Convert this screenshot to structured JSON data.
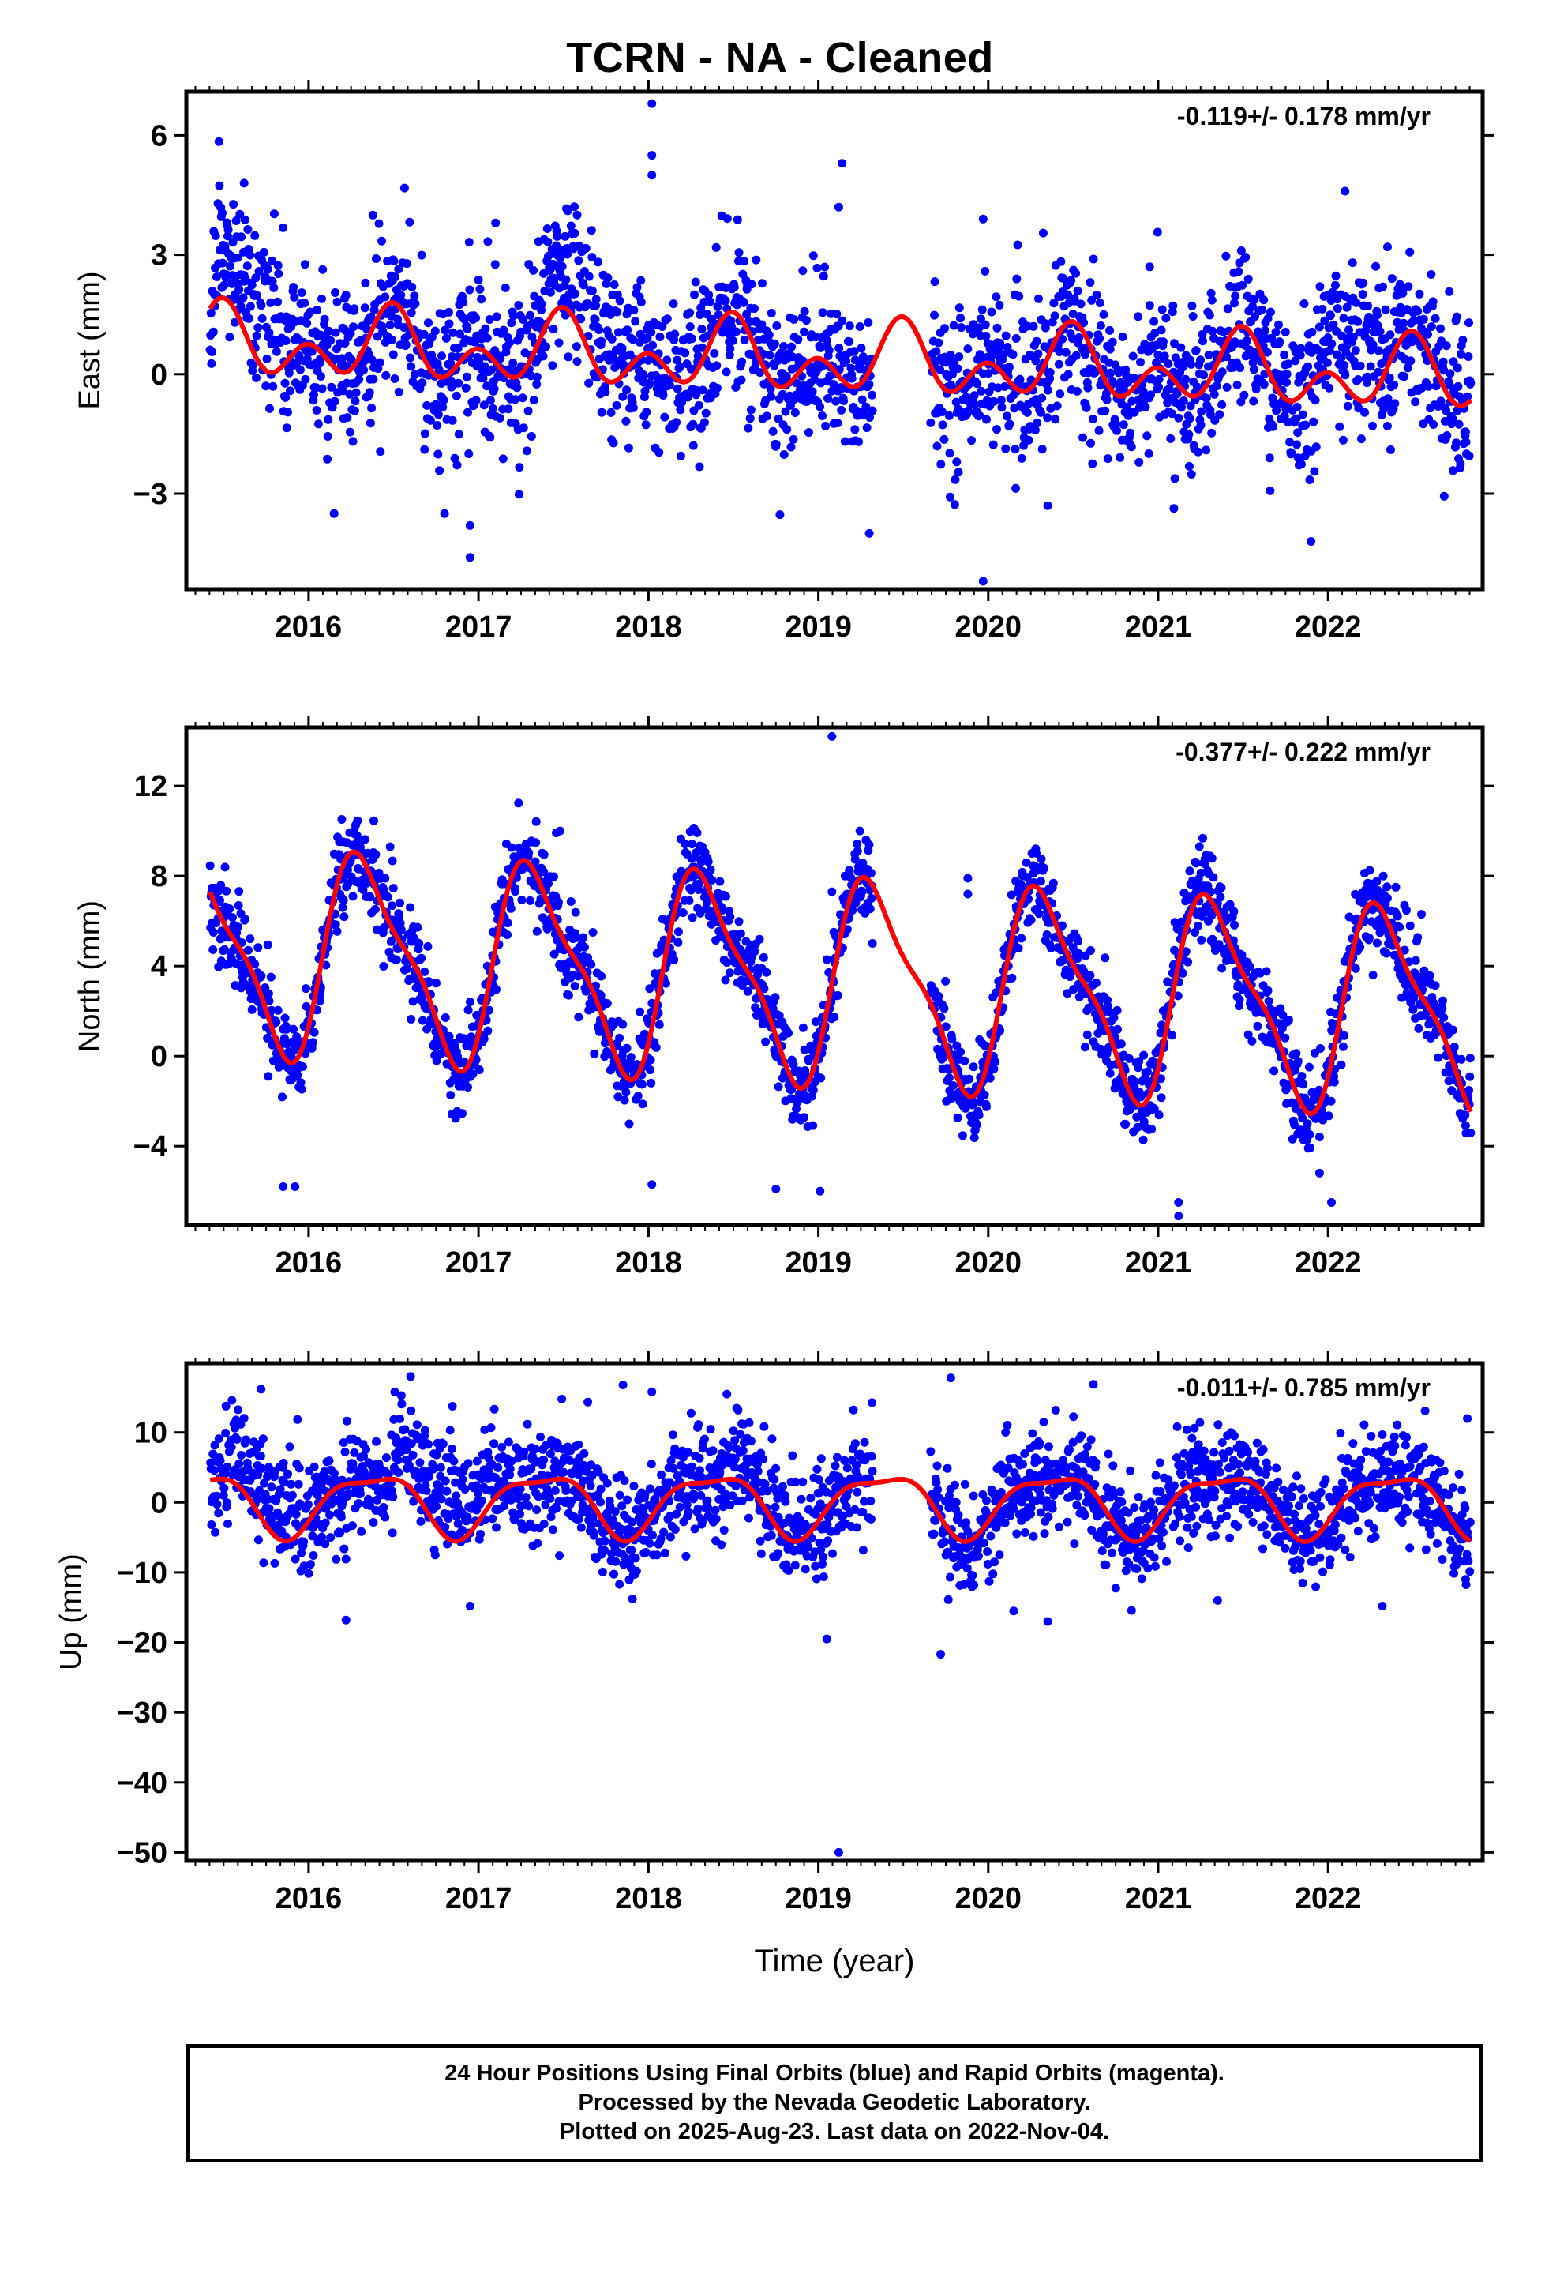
{
  "title": "TCRN  - NA - Cleaned",
  "footer": {
    "line1": "24 Hour Positions Using Final Orbits (blue) and Rapid Orbits (magenta).",
    "line2": "Processed by the Nevada Geodetic Laboratory.",
    "line3": "Plotted on 2025-Aug-23. Last data on 2022-Nov-04."
  },
  "colors": {
    "points": "#0000ff",
    "fit": "#ff0000",
    "axes": "#000000"
  },
  "chart_data": [
    {
      "type": "scatter",
      "component": "east",
      "ylabel": "East (mm)",
      "xlabel": "",
      "rate_label": "-0.119+/- 0.178 mm/yr",
      "xlim": [
        2015.28,
        2022.91
      ],
      "ylim": [
        -5.4,
        7.1
      ],
      "yticks": [
        -3,
        0,
        3,
        6
      ],
      "xticks": [
        2016,
        2017,
        2018,
        2019,
        2020,
        2021,
        2022
      ],
      "data_start": 2015.42,
      "data_end": 2022.84,
      "gap": [
        2019.32,
        2019.66
      ],
      "model": {
        "offset": 0.35,
        "trend": -0.119,
        "annual_cos": -0.55,
        "annual_sin": 0.05,
        "semiannual_cos": 0.6,
        "semiannual_sin": -0.05
      },
      "scatter_sigma": 0.95,
      "seasonal_bias": [
        {
          "x0": 2015.45,
          "x1": 2015.85,
          "dy": 1.2
        },
        {
          "x0": 2017.35,
          "x1": 2017.85,
          "dy": 0.7
        },
        {
          "x0": 2021.95,
          "x1": 2022.3,
          "dy": 1.2
        }
      ],
      "outliers": [
        {
          "x": 2018.02,
          "y": 6.8
        },
        {
          "x": 2018.02,
          "y": 5.5
        },
        {
          "x": 2018.02,
          "y": 5.0
        },
        {
          "x": 2019.14,
          "y": 5.3
        },
        {
          "x": 2019.12,
          "y": 4.2
        },
        {
          "x": 2022.1,
          "y": 4.6
        },
        {
          "x": 2015.62,
          "y": 4.8
        },
        {
          "x": 2019.97,
          "y": 3.9
        },
        {
          "x": 2019.97,
          "y": -5.2
        },
        {
          "x": 2016.95,
          "y": -4.6
        },
        {
          "x": 2016.95,
          "y": -3.8
        },
        {
          "x": 2016.8,
          "y": -3.5
        },
        {
          "x": 2019.3,
          "y": -4.0
        },
        {
          "x": 2021.9,
          "y": -4.2
        },
        {
          "x": 2016.15,
          "y": -3.5
        },
        {
          "x": 2017.1,
          "y": 3.8
        },
        {
          "x": 2017.58,
          "y": 4.0
        },
        {
          "x": 2020.35,
          "y": -3.3
        },
        {
          "x": 2022.35,
          "y": 3.2
        },
        {
          "x": 2020.95,
          "y": 2.7
        }
      ]
    },
    {
      "type": "scatter",
      "component": "north",
      "ylabel": "North (mm)",
      "xlabel": "",
      "rate_label": "-0.377+/- 0.222 mm/yr",
      "xlim": [
        2015.28,
        2022.91
      ],
      "ylim": [
        -7.5,
        14.6
      ],
      "yticks": [
        -4,
        0,
        4,
        8,
        12
      ],
      "xticks": [
        2016,
        2017,
        2018,
        2019,
        2020,
        2021,
        2022
      ],
      "data_start": 2015.42,
      "data_end": 2022.84,
      "gap": [
        2019.32,
        2019.66
      ],
      "model": {
        "offset": 3.4,
        "trend": -0.377,
        "annual_cos": -2.2,
        "annual_sin": 3.6,
        "semiannual_cos": -1.0,
        "semiannual_sin": 0.7
      },
      "scatter_sigma": 0.95,
      "seasonal_bias": [],
      "outliers": [
        {
          "x": 2019.08,
          "y": 14.2
        },
        {
          "x": 2017.48,
          "y": 10.0
        },
        {
          "x": 2016.48,
          "y": 9.3
        },
        {
          "x": 2019.88,
          "y": 7.9
        },
        {
          "x": 2019.88,
          "y": 7.2
        },
        {
          "x": 2019.08,
          "y": 7.3
        },
        {
          "x": 2021.12,
          "y": -7.1
        },
        {
          "x": 2021.12,
          "y": -6.5
        },
        {
          "x": 2015.85,
          "y": -5.8
        },
        {
          "x": 2015.92,
          "y": -5.8
        },
        {
          "x": 2018.02,
          "y": -5.7
        },
        {
          "x": 2022.02,
          "y": -6.5
        },
        {
          "x": 2018.75,
          "y": -5.9
        },
        {
          "x": 2022.45,
          "y": 6.7
        },
        {
          "x": 2022.55,
          "y": 6.3
        },
        {
          "x": 2019.01,
          "y": -6.0
        },
        {
          "x": 2021.95,
          "y": -5.2
        }
      ]
    },
    {
      "type": "scatter",
      "component": "up",
      "ylabel": "Up (mm)",
      "xlabel": "Time (year)",
      "rate_label": "-0.011+/- 0.785 mm/yr",
      "xlim": [
        2015.28,
        2022.91
      ],
      "ylim": [
        -51.2,
        19.9
      ],
      "yticks": [
        -50,
        -40,
        -30,
        -20,
        -10,
        0,
        10
      ],
      "xticks": [
        2016,
        2017,
        2018,
        2019,
        2020,
        2021,
        2022
      ],
      "data_start": 2015.42,
      "data_end": 2022.84,
      "gap": [
        2019.32,
        2019.66
      ],
      "model": {
        "offset": 0.0,
        "trend": -0.011,
        "annual_cos": -3.0,
        "annual_sin": 3.0,
        "semiannual_cos": 0.3,
        "semiannual_sin": 1.3
      },
      "scatter_sigma": 3.6,
      "seasonal_bias": [
        {
          "x0": 2015.5,
          "x1": 2015.95,
          "dy": 4.0
        },
        {
          "x0": 2016.5,
          "x1": 2017.1,
          "dy": 5.5
        },
        {
          "x0": 2018.45,
          "x1": 2018.9,
          "dy": 2.5
        }
      ],
      "outliers": [
        {
          "x": 2019.12,
          "y": -50.0
        },
        {
          "x": 2019.72,
          "y": -21.7
        },
        {
          "x": 2019.05,
          "y": -19.5
        },
        {
          "x": 2016.22,
          "y": -16.8
        },
        {
          "x": 2016.95,
          "y": -14.8
        },
        {
          "x": 2016.6,
          "y": 18.0
        },
        {
          "x": 2017.85,
          "y": 16.8
        },
        {
          "x": 2019.78,
          "y": 17.8
        },
        {
          "x": 2020.35,
          "y": -17.0
        },
        {
          "x": 2022.32,
          "y": -14.8
        },
        {
          "x": 2022.82,
          "y": 12.0
        },
        {
          "x": 2015.72,
          "y": 16.2
        },
        {
          "x": 2021.35,
          "y": -14.0
        },
        {
          "x": 2018.02,
          "y": 15.8
        },
        {
          "x": 2020.15,
          "y": -15.5
        }
      ]
    }
  ]
}
